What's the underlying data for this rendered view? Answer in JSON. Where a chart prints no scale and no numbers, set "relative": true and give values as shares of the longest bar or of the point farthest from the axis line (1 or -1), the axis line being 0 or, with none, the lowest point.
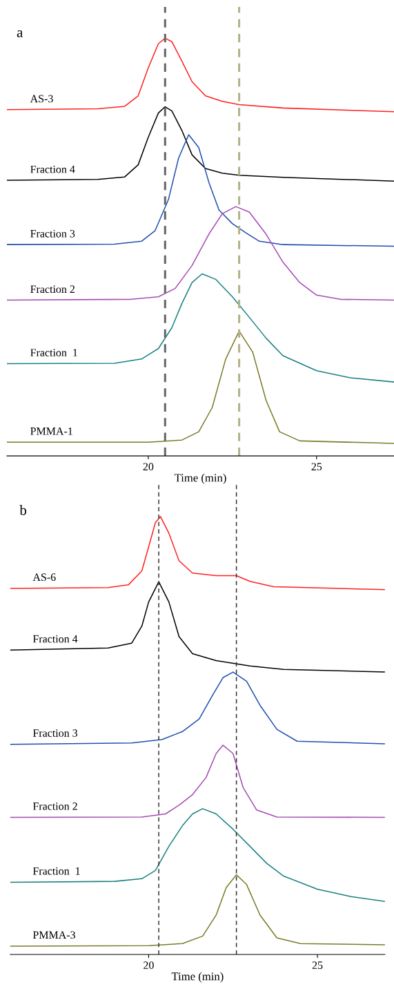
{
  "chart_data": [
    {
      "type": "line",
      "relative": true,
      "xlabel": "Time (min)",
      "annotations": [
        "a"
      ],
      "xlim": [
        15.8,
        27.3
      ],
      "xticks": [
        20,
        25
      ],
      "grid": false,
      "legend": false,
      "tick_labels": "x",
      "ref_lines": [
        {
          "axis": "x",
          "value": 20.5,
          "color": "#666666",
          "line_style": "dashed"
        },
        {
          "axis": "x",
          "value": 22.7,
          "color": "#b5b08a",
          "line_style": "dashed"
        }
      ],
      "series": [
        {
          "name": "AS-3",
          "color": "#ff2020",
          "x": [
            15.8,
            18.5,
            19.3,
            19.7,
            20.0,
            20.3,
            20.5,
            20.7,
            21.0,
            21.3,
            21.7,
            22.2,
            22.7,
            24.0,
            27.3
          ],
          "values": [
            0.829,
            0.831,
            0.837,
            0.862,
            0.929,
            0.987,
            1,
            0.992,
            0.945,
            0.896,
            0.862,
            0.849,
            0.841,
            0.833,
            0.824
          ]
        },
        {
          "name": "Fraction 4",
          "color": "#000000",
          "x": [
            15.8,
            18.5,
            19.3,
            19.7,
            20.0,
            20.3,
            20.5,
            20.7,
            21.0,
            21.3,
            21.7,
            22.2,
            22.7,
            24.0,
            27.3
          ],
          "values": [
            0.66,
            0.662,
            0.668,
            0.697,
            0.763,
            0.821,
            0.836,
            0.826,
            0.779,
            0.721,
            0.688,
            0.677,
            0.672,
            0.667,
            0.658
          ]
        },
        {
          "name": "Fraction 3",
          "color": "#1f4fb0",
          "x": [
            15.8,
            19.0,
            19.8,
            20.2,
            20.6,
            20.9,
            21.2,
            21.5,
            21.8,
            22.1,
            22.5,
            22.9,
            23.3,
            24.0,
            27.3
          ],
          "values": [
            0.506,
            0.507,
            0.514,
            0.539,
            0.614,
            0.713,
            0.769,
            0.738,
            0.655,
            0.589,
            0.556,
            0.534,
            0.514,
            0.506,
            0.502
          ]
        },
        {
          "name": "Fraction 2",
          "color": "#a64ab5",
          "x": [
            15.8,
            19.5,
            20.3,
            20.8,
            21.3,
            21.8,
            22.2,
            22.6,
            23.0,
            23.5,
            24.0,
            24.5,
            25.0,
            25.7,
            27.3
          ],
          "values": [
            0.373,
            0.375,
            0.381,
            0.401,
            0.456,
            0.531,
            0.58,
            0.597,
            0.584,
            0.531,
            0.464,
            0.415,
            0.385,
            0.375,
            0.373
          ]
        },
        {
          "name": "Fraction  1",
          "color": "#1a8080",
          "x": [
            15.8,
            19.0,
            19.8,
            20.3,
            20.7,
            21.0,
            21.3,
            21.6,
            22.0,
            22.5,
            23.0,
            23.5,
            24.0,
            25.0,
            26.0,
            27.3
          ],
          "values": [
            0.221,
            0.222,
            0.232,
            0.257,
            0.307,
            0.365,
            0.415,
            0.436,
            0.423,
            0.381,
            0.332,
            0.282,
            0.24,
            0.204,
            0.187,
            0.177
          ]
        },
        {
          "name": "PMMA-1",
          "color": "#7a7a2a",
          "x": [
            15.8,
            20.0,
            21.0,
            21.5,
            21.9,
            22.3,
            22.7,
            23.1,
            23.5,
            23.9,
            24.5,
            27.3
          ],
          "values": [
            0.033,
            0.033,
            0.038,
            0.058,
            0.116,
            0.232,
            0.299,
            0.249,
            0.133,
            0.058,
            0.036,
            0.03
          ]
        }
      ]
    },
    {
      "type": "line",
      "relative": true,
      "xlabel": "Time (min)",
      "annotations": [
        "b"
      ],
      "xlim": [
        15.9,
        27.0
      ],
      "xticks": [
        20,
        25
      ],
      "grid": false,
      "legend": false,
      "tick_labels": "x",
      "ref_lines": [
        {
          "axis": "x",
          "value": 20.3,
          "color": "#333333",
          "line_style": "dashed"
        },
        {
          "axis": "x",
          "value": 22.6,
          "color": "#333333",
          "line_style": "dashed"
        }
      ],
      "series": [
        {
          "name": "AS-6",
          "color": "#ff2020",
          "x": [
            15.9,
            18.8,
            19.4,
            19.8,
            20.0,
            20.2,
            20.35,
            20.6,
            20.9,
            21.3,
            22.0,
            22.6,
            23.0,
            23.7,
            27.0
          ],
          "values": [
            0.836,
            0.838,
            0.844,
            0.876,
            0.931,
            0.986,
            1,
            0.962,
            0.899,
            0.871,
            0.865,
            0.865,
            0.852,
            0.84,
            0.833
          ]
        },
        {
          "name": "Fraction 4",
          "color": "#000000",
          "x": [
            15.9,
            18.8,
            19.5,
            19.8,
            20.0,
            20.3,
            20.6,
            20.9,
            21.3,
            22.0,
            23.0,
            24.0,
            27.0
          ],
          "values": [
            0.695,
            0.7,
            0.711,
            0.75,
            0.805,
            0.851,
            0.805,
            0.726,
            0.687,
            0.671,
            0.659,
            0.651,
            0.645
          ]
        },
        {
          "name": "Fraction 3",
          "color": "#1f4fb0",
          "x": [
            15.9,
            19.5,
            20.4,
            21.0,
            21.5,
            21.9,
            22.2,
            22.5,
            22.9,
            23.3,
            23.8,
            24.4,
            27.0
          ],
          "values": [
            0.48,
            0.483,
            0.491,
            0.509,
            0.538,
            0.593,
            0.632,
            0.645,
            0.624,
            0.569,
            0.514,
            0.487,
            0.481
          ]
        },
        {
          "name": "Fraction 2",
          "color": "#a64ab5",
          "x": [
            15.9,
            19.8,
            20.5,
            20.9,
            21.3,
            21.7,
            22.0,
            22.2,
            22.5,
            22.8,
            23.2,
            23.8,
            27.0
          ],
          "values": [
            0.313,
            0.314,
            0.321,
            0.341,
            0.365,
            0.404,
            0.459,
            0.478,
            0.459,
            0.381,
            0.33,
            0.314,
            0.313
          ]
        },
        {
          "name": "Fraction  1",
          "color": "#1a8080",
          "x": [
            15.9,
            19.0,
            19.8,
            20.2,
            20.6,
            21.0,
            21.3,
            21.6,
            22.0,
            22.5,
            23.0,
            23.5,
            24.0,
            25.0,
            26.0,
            27.0
          ],
          "values": [
            0.165,
            0.167,
            0.173,
            0.192,
            0.247,
            0.294,
            0.321,
            0.333,
            0.321,
            0.286,
            0.247,
            0.208,
            0.179,
            0.149,
            0.132,
            0.121
          ]
        },
        {
          "name": "PMMA-3",
          "color": "#7a7a2a",
          "x": [
            15.9,
            20.0,
            21.0,
            21.6,
            22.0,
            22.3,
            22.6,
            22.9,
            23.3,
            23.8,
            24.5,
            27.0
          ],
          "values": [
            0.019,
            0.02,
            0.025,
            0.042,
            0.09,
            0.153,
            0.182,
            0.16,
            0.09,
            0.038,
            0.025,
            0.022
          ]
        }
      ]
    }
  ]
}
